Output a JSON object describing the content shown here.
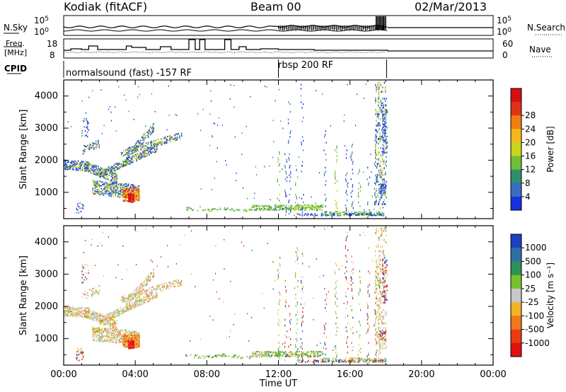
{
  "header": {
    "title": "Kodiak (fitACF)",
    "beam": "Beam 00",
    "date": "02/Mar/2013"
  },
  "panels": {
    "nsky": {
      "label": "N.Sky",
      "ticks": [
        "10^5",
        "10^0"
      ],
      "right_label": "N.Search",
      "right_ticks": [
        "10^5",
        "10^0"
      ]
    },
    "freq": {
      "label_top": "Freq.",
      "label_unit": "[MHz]",
      "ticks": [
        "18",
        "8"
      ],
      "right_label": "Nave",
      "right_ticks": [
        "60",
        "0"
      ]
    },
    "cpid": {
      "label": "CPID",
      "modes": [
        "normalsound (fast) -157 RF",
        "rbsp 200 RF"
      ]
    }
  },
  "chart_data": [
    {
      "type": "heatmap",
      "name": "power",
      "ylabel": "Slant Range [km]",
      "xlabel": "",
      "xlim": [
        0,
        24
      ],
      "ylim": [
        180,
        4500
      ],
      "y_ticks": [
        "1000",
        "2000",
        "3000",
        "4000"
      ],
      "colorbar": {
        "label": "Power [dB]",
        "ticks": [
          "4",
          "8",
          "12",
          "16",
          "20",
          "24",
          "28"
        ],
        "colors": [
          "#1a2fe0",
          "#3b6cc0",
          "#2f8f6c",
          "#6fbf3a",
          "#c6d61a",
          "#f5b81a",
          "#f07e12",
          "#e03418",
          "#d80f0f"
        ]
      }
    },
    {
      "type": "heatmap",
      "name": "velocity",
      "ylabel": "Slant Range [km]",
      "xlabel": "Time UT",
      "xlim": [
        0,
        24
      ],
      "ylim": [
        180,
        4500
      ],
      "x_ticks": [
        "00:00",
        "04:00",
        "08:00",
        "12:00",
        "16:00",
        "20:00",
        "00:00"
      ],
      "y_ticks": [
        "1000",
        "2000",
        "3000",
        "4000"
      ],
      "colorbar": {
        "label": "Velocity [m s⁻¹]",
        "ticks": [
          "1000",
          "500",
          "100",
          "25",
          "-25",
          "-100",
          "-500",
          "-1000"
        ],
        "colors": [
          "#1e3fc0",
          "#2f6fa8",
          "#2f8f5a",
          "#7ac02e",
          "#c8c8c8",
          "#f0b428",
          "#f0781e",
          "#e83c14",
          "#e01010"
        ]
      }
    }
  ]
}
